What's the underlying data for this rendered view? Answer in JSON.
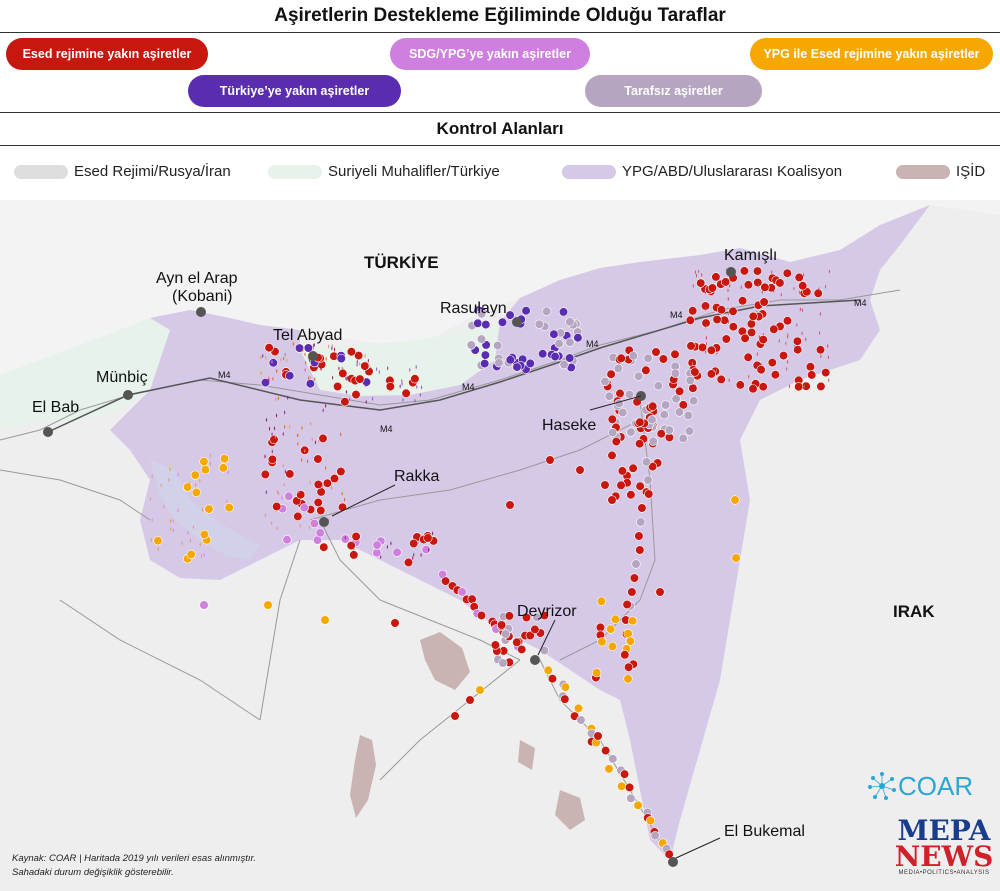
{
  "title": "Aşiretlerin Destekleme Eğiliminde Olduğu Taraflar",
  "support_legend": [
    {
      "label": "Esed rejimine yakın aşiretler",
      "color": "#c8170e"
    },
    {
      "label": "SDG/YPG’ye yakın aşiretler",
      "color": "#cf7fe0"
    },
    {
      "label": "YPG ile Esed rejimine yakın aşiretler",
      "color": "#f7a800"
    },
    {
      "label": "Türkiye’ye yakın aşiretler",
      "color": "#5a2db0"
    },
    {
      "label": "Tarafsız aşiretler",
      "color": "#b5a5c0"
    }
  ],
  "control_title": "Kontrol Alanları",
  "control_legend": [
    {
      "label": "Esed Rejimi/Rusya/İran",
      "color": "#dedede"
    },
    {
      "label": "Suriyeli Muhalifler/Türkiye",
      "color": "#e6f2ea"
    },
    {
      "label": "YPG/ABD/Uluslararası Koalisyon",
      "color": "#d6c9e8"
    },
    {
      "label": "IŞİD",
      "color": "#c9b3b3"
    }
  ],
  "map": {
    "countries": {
      "turkey": "TÜRKİYE",
      "iraq": "IRAK"
    },
    "cities": {
      "ayn_el_arap": "Ayn el Arap",
      "kobani": "(Kobani)",
      "tel_abyad": "Tel Abyad",
      "rasulayn": "Rasulayn",
      "kamisli": "Kamışlı",
      "munbic": "Münbiç",
      "el_bab": "El Bab",
      "haseke": "Haseke",
      "rakka": "Rakka",
      "deyrizor": "Deyrizor",
      "el_bukemal": "El Bukemal"
    },
    "roads": {
      "m4_1": "M4",
      "m4_2": "M4",
      "m4_3": "M4",
      "m4_4": "M4",
      "m4_5": "M4",
      "m4_6": "M4"
    }
  },
  "source_line1": "Kaynak: COAR | Haritada 2019 yılı verileri esas alınmıştır.",
  "source_line2": "Sahadaki durum değişiklik gösterebilir.",
  "logos": {
    "coar": "COAR",
    "mepa_top": "MEPA",
    "mepa_bottom": "NEWS",
    "mepa_sub": "MEDIA•POLITICS•ANALYSIS"
  }
}
